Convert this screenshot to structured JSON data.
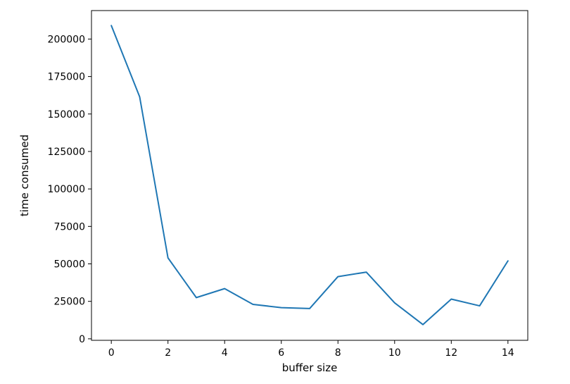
{
  "chart_data": {
    "type": "line",
    "title": "",
    "xlabel": "buffer size",
    "ylabel": "time consumed",
    "x": [
      0,
      1,
      2,
      3,
      4,
      5,
      6,
      7,
      8,
      9,
      10,
      11,
      12,
      13,
      14
    ],
    "series": [
      {
        "values": [
          209000,
          161500,
          54000,
          27500,
          33500,
          23000,
          20800,
          20200,
          41500,
          44500,
          24000,
          9500,
          26500,
          22000,
          52000
        ],
        "color": "#1f77b4"
      }
    ],
    "xlim": [
      -0.7,
      14.7
    ],
    "ylim": [
      -1000,
      219000
    ],
    "xticks": [
      0,
      2,
      4,
      6,
      8,
      10,
      12,
      14
    ],
    "yticks": [
      0,
      25000,
      50000,
      75000,
      100000,
      125000,
      150000,
      175000,
      200000
    ],
    "xtick_labels": [
      "0",
      "2",
      "4",
      "6",
      "8",
      "10",
      "12",
      "14"
    ],
    "ytick_labels": [
      "0",
      "25000",
      "50000",
      "75000",
      "100000",
      "125000",
      "150000",
      "175000",
      "200000"
    ],
    "grid": false,
    "legend": "none"
  }
}
